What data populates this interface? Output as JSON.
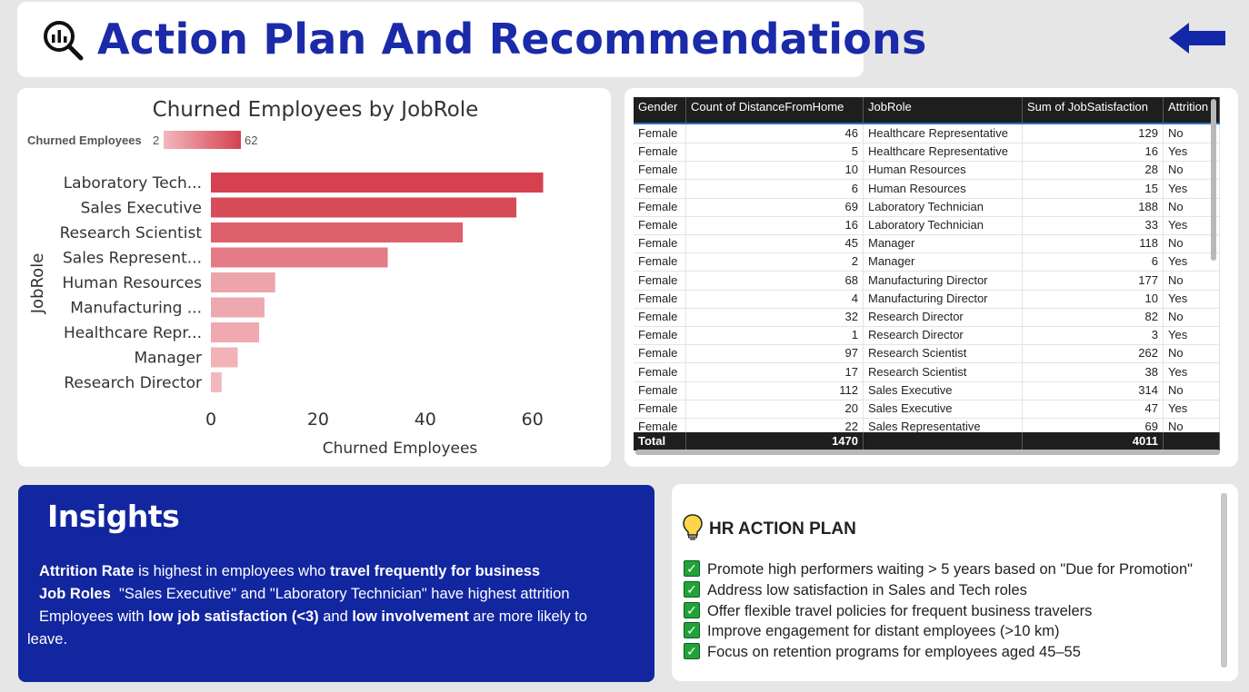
{
  "header": {
    "title": "Action Plan And Recommendations",
    "logo_icon": "magnify-chart-icon",
    "back_icon": "arrow-left-icon"
  },
  "chart_data": {
    "type": "bar",
    "orientation": "horizontal",
    "title": "Churned Employees by JobRole",
    "xlabel": "Churned Employees",
    "ylabel": "JobRole",
    "legend": {
      "label": "Churned Employees",
      "min_label": "2",
      "max_label": "62"
    },
    "categories": [
      "Laboratory Tech...",
      "Sales Executive",
      "Research Scientist",
      "Sales Represent...",
      "Human Resources",
      "Manufacturing ...",
      "Healthcare Repr...",
      "Manager",
      "Research Director"
    ],
    "values": [
      62,
      57,
      47,
      33,
      12,
      10,
      9,
      5,
      2
    ],
    "xlim": [
      0,
      67
    ],
    "xticks": [
      0,
      20,
      40,
      60
    ],
    "color_low": "#f2b8be",
    "color_high": "#d6414f"
  },
  "table": {
    "columns": [
      "Gender",
      "Count of DistanceFromHome",
      "JobRole",
      "Sum of JobSatisfaction",
      "Attrition"
    ],
    "rows": [
      [
        "Female",
        "46",
        "Healthcare Representative",
        "129",
        "No"
      ],
      [
        "Female",
        "5",
        "Healthcare Representative",
        "16",
        "Yes"
      ],
      [
        "Female",
        "10",
        "Human Resources",
        "28",
        "No"
      ],
      [
        "Female",
        "6",
        "Human Resources",
        "15",
        "Yes"
      ],
      [
        "Female",
        "69",
        "Laboratory Technician",
        "188",
        "No"
      ],
      [
        "Female",
        "16",
        "Laboratory Technician",
        "33",
        "Yes"
      ],
      [
        "Female",
        "45",
        "Manager",
        "118",
        "No"
      ],
      [
        "Female",
        "2",
        "Manager",
        "6",
        "Yes"
      ],
      [
        "Female",
        "68",
        "Manufacturing Director",
        "177",
        "No"
      ],
      [
        "Female",
        "4",
        "Manufacturing Director",
        "10",
        "Yes"
      ],
      [
        "Female",
        "32",
        "Research Director",
        "82",
        "No"
      ],
      [
        "Female",
        "1",
        "Research Director",
        "3",
        "Yes"
      ],
      [
        "Female",
        "97",
        "Research Scientist",
        "262",
        "No"
      ],
      [
        "Female",
        "17",
        "Research Scientist",
        "38",
        "Yes"
      ],
      [
        "Female",
        "112",
        "Sales Executive",
        "314",
        "No"
      ],
      [
        "Female",
        "20",
        "Sales Executive",
        "47",
        "Yes"
      ],
      [
        "Female",
        "22",
        "Sales Representative",
        "69",
        "No"
      ]
    ],
    "total": [
      "Total",
      "1470",
      "",
      "4011",
      ""
    ]
  },
  "insights": {
    "title": "Insights",
    "line1": {
      "b1": "Attrition Rate",
      "t1": " is highest in employees who ",
      "b2": "travel frequently for business"
    },
    "line2": {
      "b1": "Job Roles",
      "t1": "  \"Sales Executive\" and \"Laboratory Technician\" have highest attrition"
    },
    "line3": {
      "t1": "Employees with ",
      "b1": "low job satisfaction (<3)",
      "t2": " and ",
      "b2": "low involvement",
      "t3": " are more likely to"
    },
    "line4": {
      "t1": "leave."
    }
  },
  "plan": {
    "title": "HR ACTION PLAN",
    "items": [
      "Promote high performers waiting > 5 years based on \"Due for Promotion\"",
      "Address low satisfaction in Sales and Tech roles",
      "Offer flexible travel policies for frequent business travelers",
      "Improve engagement for distant employees (>10 km)",
      "Focus on retention programs for employees aged 45–55"
    ]
  }
}
